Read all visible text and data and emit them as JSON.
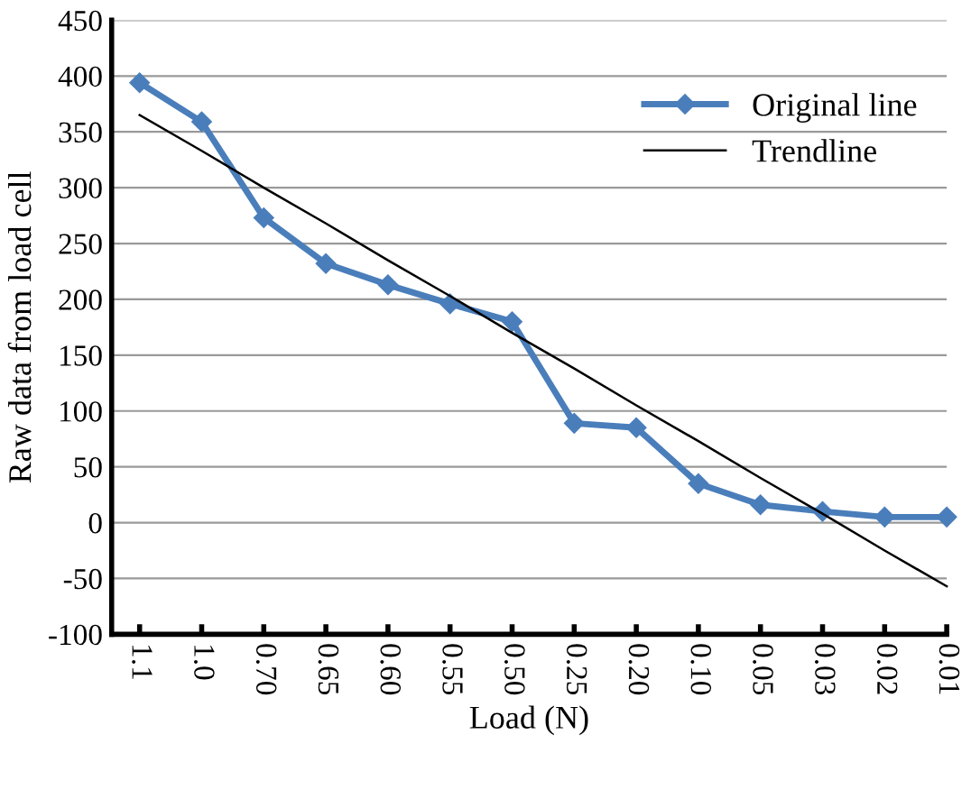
{
  "chart_data": {
    "type": "line",
    "xlabel": "Load (N)",
    "ylabel": "Raw data from load cell",
    "categories": [
      "1.1",
      "1.0",
      "0.70",
      "0.65",
      "0.60",
      "0.55",
      "0.50",
      "0.25",
      "0.20",
      "0.10",
      "0.05",
      "0.03",
      "0.02",
      "0.01"
    ],
    "series": [
      {
        "name": "Original line",
        "color": "#4a7ebb",
        "marker": "diamond",
        "values": [
          394,
          359,
          273,
          232,
          213,
          196,
          180,
          89,
          85,
          35,
          16,
          10,
          5,
          5
        ]
      },
      {
        "name": "Trendline",
        "color": "#000000",
        "marker": "none",
        "values": [
          365,
          333,
          300,
          268,
          235,
          203,
          170,
          138,
          105,
          73,
          40,
          8,
          -25,
          -57
        ]
      }
    ],
    "ylim": [
      -100,
      450
    ],
    "yticks": [
      -100,
      -50,
      0,
      50,
      100,
      150,
      200,
      250,
      300,
      350,
      400,
      450
    ],
    "grid": "y",
    "legend": "right"
  }
}
